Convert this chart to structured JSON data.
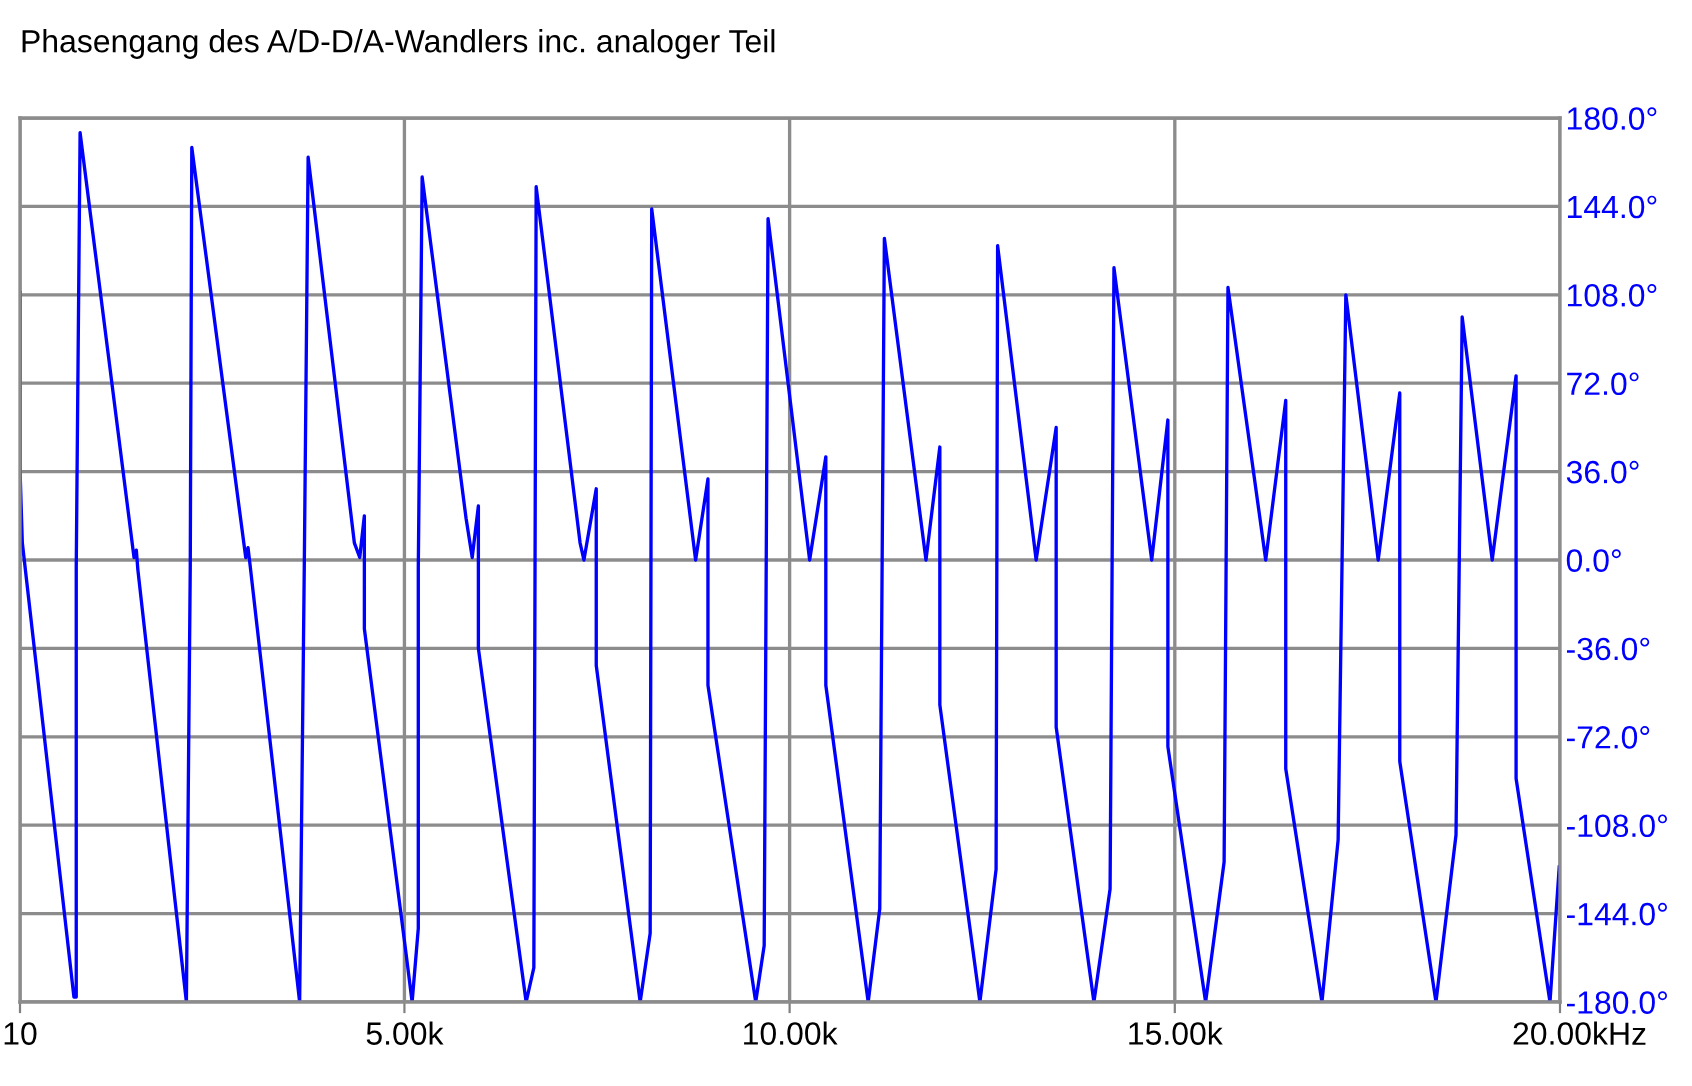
{
  "chart_data": {
    "type": "line",
    "title": "Phasengang des A/D-D/A-Wandlers inc. analoger Teil",
    "xlim": [
      10,
      20000
    ],
    "xticks": [
      10,
      {
        "value": 5000,
        "label": "5.00k"
      },
      {
        "value": 10000,
        "label": "10.00k"
      },
      {
        "value": 15000,
        "label": "15.00k"
      },
      {
        "value": 20000,
        "label": "20.00k"
      }
    ],
    "xlabel": "Hz",
    "ylim": [
      -180,
      180
    ],
    "yticks": [
      {
        "value": 180,
        "label": "180.0°"
      },
      {
        "value": 144,
        "label": "144.0°"
      },
      {
        "value": 108,
        "label": "108.0°"
      },
      {
        "value": 72,
        "label": "72.0°"
      },
      {
        "value": 36,
        "label": "36.0°"
      },
      {
        "value": 0,
        "label": "0.0°"
      },
      {
        "value": -36,
        "label": "-36.0°"
      },
      {
        "value": -72,
        "label": "-72.0°"
      },
      {
        "value": -108,
        "label": "-108.0°"
      },
      {
        "value": -144,
        "label": "-144.0°"
      },
      {
        "value": -180,
        "label": "-180.0°"
      }
    ],
    "grid": true,
    "series": [
      {
        "color": "#0000ff",
        "x": [
          10,
          10,
          40,
          710,
          740,
          740,
          790,
          1490,
          1520,
          1540,
          2170,
          2220,
          2240,
          2940,
          2970,
          3000,
          3640,
          3700,
          3750,
          4350,
          4420,
          4480,
          4480,
          5020,
          5100,
          5180,
          5180,
          5230,
          5800,
          5880,
          5960,
          5960,
          6580,
          6680,
          6710,
          7280,
          7330,
          7490,
          7490,
          8060,
          8190,
          8210,
          8780,
          8940,
          8940,
          9560,
          9670,
          9720,
          10260,
          10470,
          10470,
          11020,
          11170,
          11230,
          11770,
          11950,
          11950,
          12470,
          12680,
          12700,
          13200,
          13460,
          13460,
          13950,
          14160,
          14210,
          14700,
          14910,
          14910,
          15400,
          15640,
          15690,
          16180,
          16440,
          16440,
          16910,
          17120,
          17220,
          17640,
          17920,
          17920,
          18390,
          18650,
          18730,
          19120,
          19430,
          19430,
          19870,
          19990
        ],
        "values": [
          109,
          37,
          7,
          -178,
          -178,
          -3,
          174,
          1,
          4,
          -4,
          -180,
          -3,
          168,
          1,
          5,
          -3,
          -180,
          -3,
          164,
          7,
          1,
          18,
          -28,
          -160,
          -180,
          -150,
          -3,
          156,
          17,
          1,
          22,
          -36,
          -180,
          -166,
          152,
          7,
          0,
          29,
          -43,
          -180,
          -152,
          143,
          0,
          33,
          -51,
          -180,
          -157,
          139,
          0,
          42,
          -51,
          -180,
          -142,
          131,
          0,
          46,
          -59,
          -180,
          -126,
          128,
          0,
          54,
          -68,
          -180,
          -134,
          119,
          0,
          57,
          -76,
          -180,
          -123,
          111,
          0,
          65,
          -85,
          -180,
          -114,
          108,
          0,
          68,
          -82,
          -180,
          -112,
          99,
          0,
          75,
          -89,
          -180,
          -125
        ]
      }
    ]
  }
}
